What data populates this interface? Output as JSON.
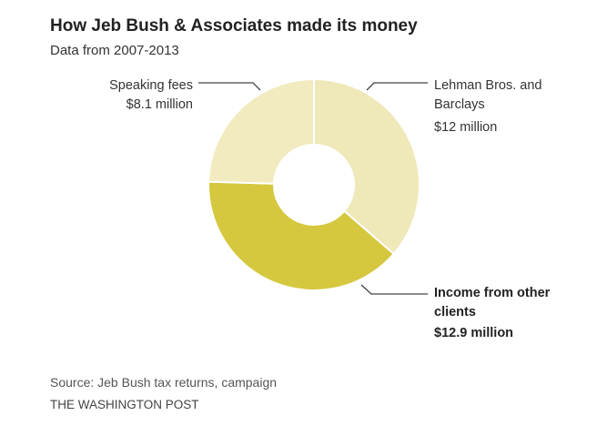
{
  "chart_data": {
    "type": "pie",
    "donut": true,
    "title": "How Jeb Bush & Associates made its money",
    "subtitle": "Data from 2007-2013",
    "unit": "million",
    "slices": [
      {
        "label": "Lehman Bros. and Barclays",
        "value": 12,
        "value_label": "$12 million",
        "color": "#efe8b9"
      },
      {
        "label": "Income from other clients",
        "value": 12.9,
        "value_label": "$12.9 million",
        "color": "#d5c83f"
      },
      {
        "label": "Speaking fees",
        "value": 8.1,
        "value_label": "$8.1 million",
        "color": "#f1ebbf"
      }
    ],
    "source": "Source: Jeb Bush tax returns, campaign",
    "credit": "THE WASHINGTON POST"
  }
}
